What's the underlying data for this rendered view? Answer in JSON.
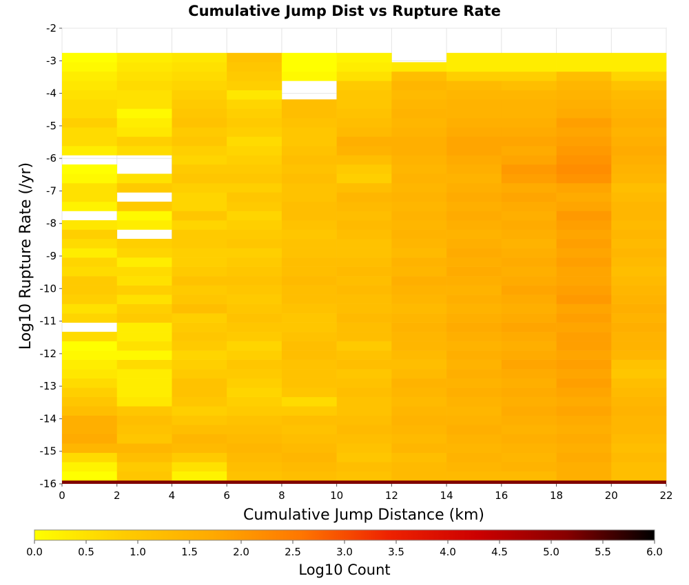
{
  "chart_data": {
    "type": "heatmap",
    "title": "Cumulative Jump Dist vs Rupture Rate",
    "xlabel": "Cumulative Jump Distance (km)",
    "ylabel": "Log10 Rupture Rate (/yr)",
    "xlim": [
      0,
      22
    ],
    "ylim": [
      -16,
      -2
    ],
    "x_ticks": [
      "0",
      "2",
      "4",
      "6",
      "8",
      "10",
      "12",
      "14",
      "16",
      "18",
      "20",
      "22"
    ],
    "y_ticks": [
      "-2",
      "-3",
      "-4",
      "-5",
      "-6",
      "-7",
      "-8",
      "-9",
      "-10",
      "-11",
      "-12",
      "-13",
      "-14",
      "-15",
      "-16"
    ],
    "x_bin_width": 2,
    "y_bin_width": 0.2857,
    "columns": [
      {
        "x_start": 0,
        "y_values": [
          0.0,
          0.2,
          0.6,
          1.4,
          1.7,
          1.6,
          1.6,
          1.2,
          1.0,
          0.8,
          0.6,
          0.4,
          0.3,
          0.1,
          0.0,
          0.6,
          null,
          0.7,
          0.5,
          0.8,
          0.9,
          0.9,
          0.6,
          0.7,
          0.3,
          0.6,
          0.8,
          0.4,
          null,
          0.2,
          0.5,
          0.5,
          0.1,
          0.0,
          null,
          0.3,
          0.6,
          0.6,
          0.8,
          0.6,
          0.6,
          0.5,
          0.4,
          0.3,
          0.1,
          0.0
        ]
      },
      {
        "x_start": 2,
        "y_values": [
          1.0,
          0.9,
          1.2,
          1.4,
          1.0,
          1.1,
          1.2,
          1.0,
          0.4,
          0.3,
          0.3,
          0.3,
          0.6,
          0.1,
          0.5,
          0.3,
          0.3,
          0.9,
          0.8,
          0.5,
          0.8,
          0.5,
          0.6,
          0.3,
          0.7,
          0.8,
          null,
          0.3,
          0.1,
          0.9,
          null,
          0.9,
          0.5,
          null,
          null,
          0.6,
          0.8,
          0.4,
          0.3,
          0.1,
          0.5,
          0.5,
          0.6,
          0.5,
          0.4,
          0.3
        ]
      },
      {
        "x_start": 4,
        "y_values": [
          0.2,
          0.5,
          0.9,
          1.3,
          1.4,
          1.2,
          1.0,
          0.8,
          1.0,
          1.1,
          1.1,
          0.9,
          0.8,
          0.7,
          0.9,
          1.0,
          0.9,
          0.8,
          1.2,
          1.0,
          0.9,
          1.1,
          0.9,
          0.8,
          0.8,
          0.9,
          0.9,
          0.7,
          1.0,
          0.7,
          0.7,
          0.8,
          1.0,
          0.9,
          0.7,
          0.8,
          1.0,
          0.9,
          1.1,
          1.0,
          0.9,
          0.8,
          0.7,
          0.6,
          0.5,
          0.4
        ]
      },
      {
        "x_start": 6,
        "y_values": [
          1.1,
          1.2,
          1.3,
          1.4,
          1.3,
          1.2,
          1.1,
          0.9,
          0.8,
          0.7,
          0.8,
          0.9,
          1.0,
          0.8,
          0.7,
          0.9,
          1.0,
          1.1,
          1.0,
          0.9,
          1.0,
          1.1,
          1.0,
          0.9,
          0.8,
          1.0,
          0.9,
          0.8,
          0.7,
          0.9,
          1.0,
          0.8,
          1.0,
          0.9,
          0.8,
          0.7,
          0.6,
          0.8,
          0.9,
          0.8,
          0.7,
          0.4,
          0.8,
          0.9,
          1.0,
          1.1
        ]
      },
      {
        "x_start": 8,
        "y_values": [
          1.2,
          1.3,
          1.4,
          1.3,
          1.2,
          1.1,
          1.2,
          0.9,
          0.6,
          1.0,
          1.1,
          1.1,
          1.1,
          1.2,
          1.2,
          1.1,
          1.0,
          1.0,
          1.1,
          1.2,
          1.2,
          1.3,
          1.2,
          1.2,
          1.1,
          1.1,
          1.0,
          1.1,
          1.2,
          1.2,
          1.1,
          1.1,
          1.2,
          1.1,
          1.2,
          1.1,
          1.0,
          1.0,
          1.1,
          1.2,
          1.2,
          null,
          null,
          0.1,
          0.0,
          0.0
        ]
      },
      {
        "x_start": 10,
        "y_values": [
          1.1,
          1.2,
          1.0,
          1.1,
          1.2,
          1.3,
          1.2,
          1.1,
          1.1,
          1.2,
          1.1,
          1.0,
          1.2,
          1.1,
          0.9,
          1.2,
          1.2,
          1.3,
          1.2,
          1.2,
          1.3,
          1.2,
          1.3,
          1.2,
          1.1,
          1.1,
          1.2,
          1.3,
          1.2,
          1.3,
          1.4,
          1.2,
          0.8,
          0.9,
          1.2,
          1.5,
          1.6,
          1.3,
          1.2,
          1.1,
          1.0,
          1.0,
          0.9,
          0.5,
          0.3,
          0.2
        ]
      },
      {
        "x_start": 12,
        "y_values": [
          1.3,
          1.3,
          1.2,
          1.4,
          1.3,
          1.4,
          1.5,
          1.4,
          1.3,
          1.4,
          1.5,
          1.3,
          1.2,
          1.3,
          1.4,
          1.4,
          1.5,
          1.4,
          1.3,
          1.4,
          1.5,
          1.6,
          1.4,
          1.5,
          1.3,
          1.4,
          1.5,
          1.4,
          1.5,
          1.4,
          1.5,
          1.4,
          1.5,
          1.4,
          1.5,
          1.6,
          1.6,
          1.5,
          1.4,
          1.5,
          1.4,
          1.3,
          1.4,
          1.2,
          0.4,
          null
        ]
      },
      {
        "x_start": 14,
        "y_values": [
          1.3,
          1.4,
          1.5,
          1.4,
          1.5,
          1.6,
          1.5,
          1.4,
          1.5,
          1.6,
          1.5,
          1.6,
          1.5,
          1.6,
          1.5,
          1.6,
          1.7,
          1.6,
          1.5,
          1.6,
          1.5,
          1.6,
          1.7,
          1.6,
          1.7,
          1.6,
          1.5,
          1.6,
          1.7,
          1.6,
          1.7,
          1.6,
          1.5,
          1.6,
          1.7,
          1.8,
          1.8,
          1.7,
          1.6,
          1.5,
          1.5,
          1.4,
          1.3,
          0.8,
          0.3,
          0.3
        ]
      },
      {
        "x_start": 16,
        "y_values": [
          1.3,
          1.5,
          1.4,
          1.5,
          1.6,
          1.5,
          1.6,
          1.7,
          1.6,
          1.7,
          1.6,
          1.7,
          1.8,
          1.7,
          1.6,
          1.7,
          1.8,
          1.7,
          1.6,
          1.7,
          1.8,
          1.7,
          1.6,
          1.7,
          1.6,
          1.5,
          1.6,
          1.7,
          1.6,
          1.7,
          1.8,
          1.7,
          1.9,
          2.0,
          1.8,
          1.7,
          1.8,
          1.7,
          1.6,
          1.5,
          1.5,
          1.4,
          1.2,
          0.8,
          0.3,
          0.3
        ]
      },
      {
        "x_start": 18,
        "y_values": [
          1.6,
          1.6,
          1.7,
          1.6,
          1.7,
          1.6,
          1.7,
          1.8,
          1.7,
          1.8,
          1.9,
          1.8,
          1.9,
          1.8,
          1.9,
          1.9,
          1.8,
          1.9,
          1.8,
          2.0,
          1.9,
          1.8,
          1.8,
          1.9,
          1.8,
          1.9,
          1.8,
          1.9,
          2.0,
          1.8,
          1.7,
          1.8,
          2.1,
          2.2,
          2.1,
          2.0,
          1.9,
          1.8,
          1.9,
          1.7,
          1.6,
          1.5,
          1.4,
          1.2,
          0.3,
          0.3
        ]
      },
      {
        "x_start": 20,
        "y_values": [
          1.2,
          1.2,
          1.3,
          1.2,
          1.3,
          1.4,
          1.4,
          1.5,
          1.4,
          1.3,
          1.2,
          1.0,
          1.1,
          1.4,
          1.5,
          1.5,
          1.6,
          1.5,
          1.6,
          1.5,
          1.4,
          1.3,
          1.2,
          1.3,
          1.4,
          1.3,
          1.4,
          1.3,
          1.4,
          1.4,
          1.3,
          1.2,
          1.4,
          1.5,
          1.6,
          1.7,
          1.6,
          1.5,
          1.6,
          1.5,
          1.4,
          1.3,
          1.1,
          0.7,
          0.3,
          0.3
        ]
      }
    ],
    "bottom_row": {
      "y_range": [
        -16,
        -15.9
      ],
      "log10_count": 5.2
    },
    "colorbar": {
      "label": "Log10 Count",
      "range": [
        0,
        6
      ],
      "ticks": [
        "0.0",
        "0.5",
        "1.0",
        "1.5",
        "2.0",
        "2.5",
        "3.0",
        "3.5",
        "4.0",
        "4.5",
        "5.0",
        "5.5",
        "6.0"
      ],
      "colors": [
        "#ffff00",
        "#ffcc00",
        "#ffaa00",
        "#ff7700",
        "#ee2200",
        "#cc0000",
        "#880000",
        "#000000"
      ]
    },
    "grid": true,
    "legend_position": "bottom"
  }
}
